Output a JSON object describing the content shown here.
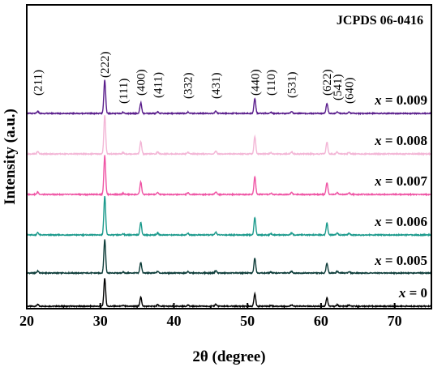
{
  "chart_data": {
    "type": "line",
    "title": "",
    "xlabel": "2θ (degree)",
    "ylabel": "Intensity (a.u.)",
    "xlim": [
      20,
      75
    ],
    "x_ticks": [
      20,
      30,
      40,
      50,
      60,
      70
    ],
    "y_ticks_shown": false,
    "grid": false,
    "stacked_offset": true,
    "annotation": "JCPDS 06-0416",
    "peaks": [
      {
        "label": "(211)",
        "x": 21.5,
        "rel": 0.06
      },
      {
        "label": "(222)",
        "x": 30.6,
        "rel": 1.0
      },
      {
        "label": "(111)",
        "x": 33.1,
        "rel": 0.03
      },
      {
        "label": "(400)",
        "x": 35.5,
        "rel": 0.32
      },
      {
        "label": "(411)",
        "x": 37.8,
        "rel": 0.05
      },
      {
        "label": "(332)",
        "x": 41.9,
        "rel": 0.04
      },
      {
        "label": "(431)",
        "x": 45.7,
        "rel": 0.07
      },
      {
        "label": "(440)",
        "x": 51.0,
        "rel": 0.45
      },
      {
        "label": "(110)",
        "x": 53.2,
        "rel": 0.03
      },
      {
        "label": "(531)",
        "x": 56.0,
        "rel": 0.05
      },
      {
        "label": "(622)",
        "x": 60.8,
        "rel": 0.3
      },
      {
        "label": "(541)",
        "x": 62.2,
        "rel": 0.05
      },
      {
        "label": "(640)",
        "x": 63.8,
        "rel": 0.04
      }
    ],
    "series": [
      {
        "name": "x = 0",
        "color": "#000000",
        "peak_height": 0.72
      },
      {
        "name": "x = 0.005",
        "color": "#0e3d3a",
        "peak_height": 0.86
      },
      {
        "name": "x = 0.006",
        "color": "#1b9a8c",
        "peak_height": 1.0
      },
      {
        "name": "x = 0.007",
        "color": "#ef55a5",
        "peak_height": 1.0
      },
      {
        "name": "x = 0.008",
        "color": "#f3b6d6",
        "peak_height": 1.0
      },
      {
        "name": "x = 0.009",
        "color": "#5a1e8c",
        "peak_height": 0.86
      }
    ]
  }
}
